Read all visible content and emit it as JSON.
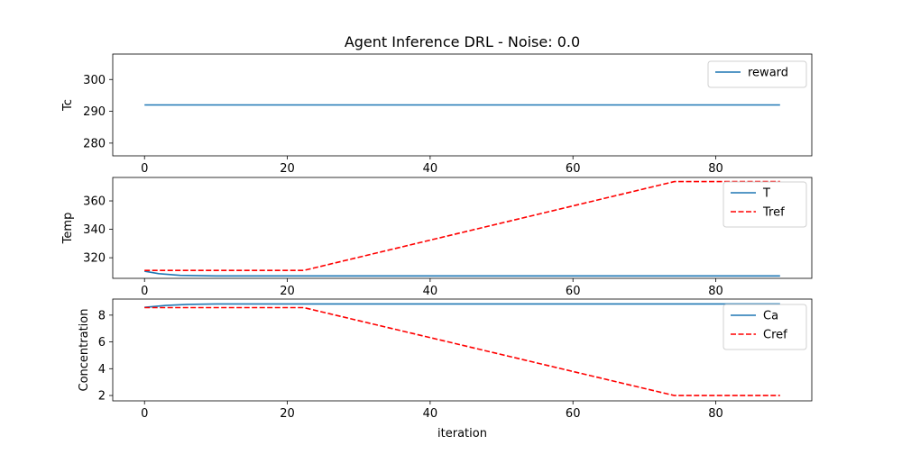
{
  "chart_data": {
    "title": "Agent Inference DRL - Noise: 0.0",
    "xlabel": "iteration",
    "x_ticks": [
      0,
      20,
      40,
      60,
      80
    ],
    "xlim": [
      -4.45,
      93.45
    ],
    "colors": {
      "primary": "#1f77b4",
      "reference": "#ff0000"
    },
    "subplots": [
      {
        "id": "tc",
        "ylabel": "Tc",
        "ylim": [
          276,
          308
        ],
        "y_ticks": [
          280,
          290,
          300
        ],
        "series": [
          {
            "name": "reward",
            "style": "solid",
            "color": "#1f77b4",
            "x": [
              0,
              89
            ],
            "y": [
              292,
              292
            ]
          }
        ]
      },
      {
        "id": "temp",
        "ylabel": "Temp",
        "ylim": [
          305.5,
          376.5
        ],
        "y_ticks": [
          320,
          340,
          360
        ],
        "series": [
          {
            "name": "T",
            "style": "solid",
            "color": "#1f77b4",
            "x": [
              0,
              2,
              5,
              10,
              89
            ],
            "y": [
              310.5,
              308.8,
              307.6,
              307.2,
              307.2
            ]
          },
          {
            "name": "Tref",
            "style": "dashed",
            "color": "#ff0000",
            "x": [
              0,
              22.3,
              74.2,
              89
            ],
            "y": [
              311.1,
              311.1,
              373.6,
              373.6
            ]
          }
        ]
      },
      {
        "id": "conc",
        "ylabel": "Concentration",
        "ylim": [
          1.6,
          9.2
        ],
        "y_ticks": [
          2,
          4,
          6,
          8
        ],
        "series": [
          {
            "name": "Ca",
            "style": "solid",
            "color": "#1f77b4",
            "x": [
              0,
              3,
              6,
              10,
              89
            ],
            "y": [
              8.58,
              8.72,
              8.8,
              8.84,
              8.84
            ]
          },
          {
            "name": "Cref",
            "style": "dashed",
            "color": "#ff0000",
            "x": [
              0,
              22.3,
              74.2,
              89
            ],
            "y": [
              8.56,
              8.56,
              2.0,
              2.0
            ]
          }
        ]
      }
    ]
  }
}
